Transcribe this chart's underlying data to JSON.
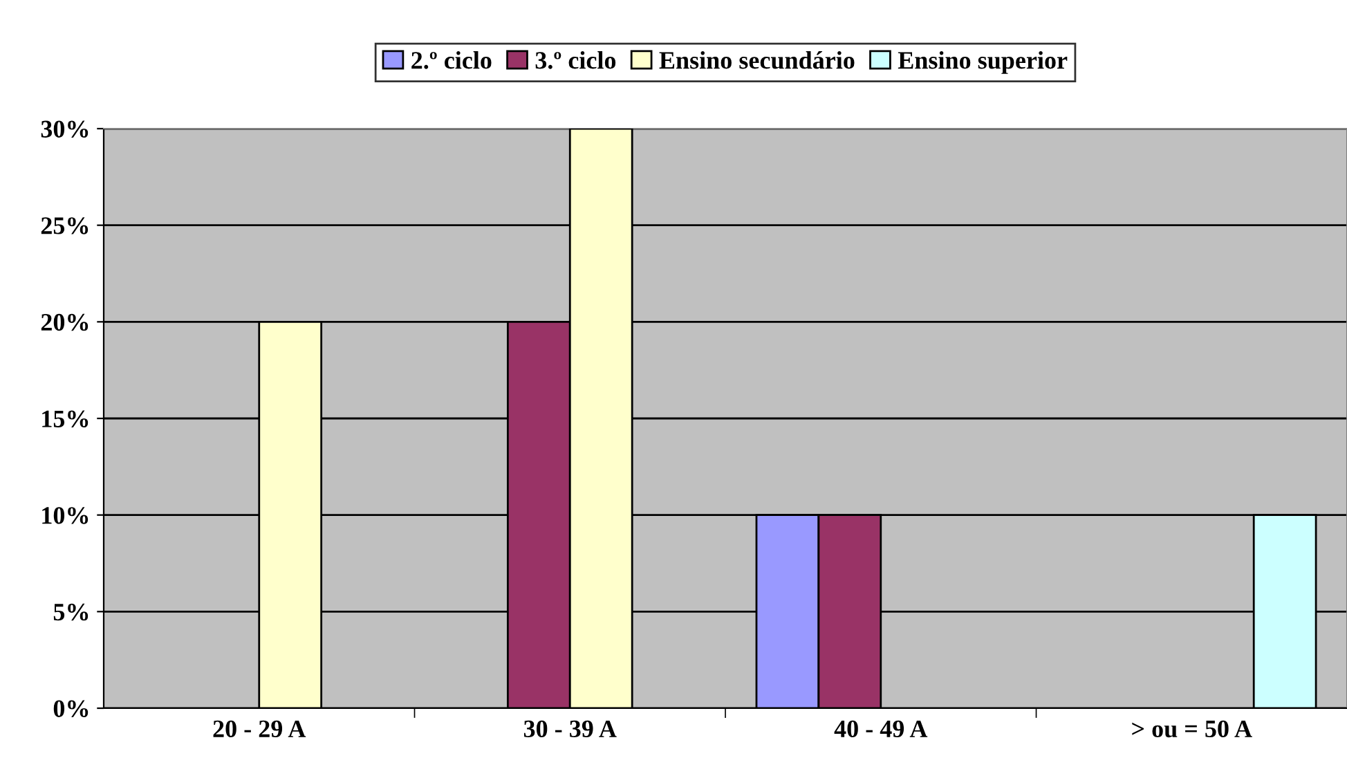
{
  "chart_data": {
    "type": "bar",
    "categories": [
      "20 - 29 A",
      "30 - 39 A",
      "40 - 49 A",
      "> ou = 50 A"
    ],
    "series": [
      {
        "name": "2.º ciclo",
        "color": "#9999ff",
        "values": [
          null,
          null,
          10,
          null
        ]
      },
      {
        "name": "3.º ciclo",
        "color": "#993366",
        "values": [
          null,
          20,
          10,
          null
        ]
      },
      {
        "name": "Ensino secundário",
        "color": "#ffffcc",
        "values": [
          20,
          30,
          null,
          null
        ]
      },
      {
        "name": "Ensino superior",
        "color": "#ccffff",
        "values": [
          null,
          null,
          null,
          10
        ]
      }
    ],
    "ylim": [
      0,
      30
    ],
    "yticks": [
      {
        "value": 0,
        "label": "0%"
      },
      {
        "value": 5,
        "label": "5%"
      },
      {
        "value": 10,
        "label": "10%"
      },
      {
        "value": 15,
        "label": "15%"
      },
      {
        "value": 20,
        "label": "20%"
      },
      {
        "value": 25,
        "label": "25%"
      },
      {
        "value": 30,
        "label": "30%"
      }
    ],
    "grid": "y",
    "legend": "top"
  }
}
